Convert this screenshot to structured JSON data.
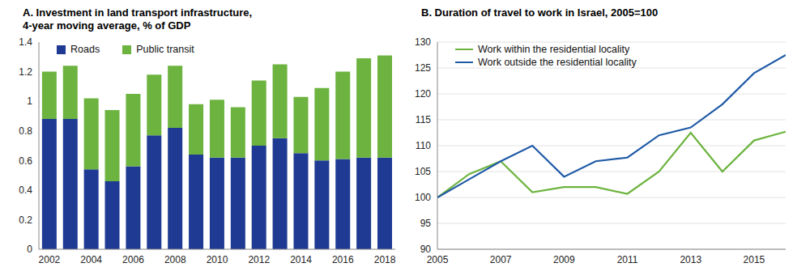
{
  "chart_data": [
    {
      "type": "bar",
      "title": "A. Investment in land transport infrastructure,\n4-year moving average, % of GDP",
      "categories": [
        "2002",
        null,
        "2004",
        null,
        "2006",
        null,
        "2008",
        null,
        "2010",
        null,
        "2012",
        null,
        "2014",
        null,
        "2016",
        null,
        "2018"
      ],
      "series": [
        {
          "name": "Roads",
          "color": "#1f3a93",
          "values": [
            0.88,
            0.88,
            0.54,
            0.46,
            0.56,
            0.77,
            0.82,
            0.64,
            0.62,
            0.62,
            0.7,
            0.75,
            0.65,
            0.6,
            0.61,
            0.62,
            0.62
          ]
        },
        {
          "name": "Public transit",
          "color": "#6db33f",
          "values": [
            0.32,
            0.36,
            0.48,
            0.48,
            0.49,
            0.41,
            0.42,
            0.34,
            0.39,
            0.34,
            0.44,
            0.5,
            0.38,
            0.49,
            0.59,
            0.67,
            0.69
          ]
        }
      ],
      "stacked": true,
      "ylim": [
        0,
        1.4
      ],
      "yticks": [
        0,
        0.2,
        0.4,
        0.6,
        0.8,
        1,
        1.2,
        1.4
      ],
      "legend": "upper left",
      "grid": false
    },
    {
      "type": "line",
      "title": "B. Duration of travel to work in Israel, 2005=100",
      "x": [
        2005,
        2006,
        2007,
        2008,
        2009,
        2010,
        2011,
        2012,
        2013,
        2014,
        2015,
        2016
      ],
      "series": [
        {
          "name": "Work within the residential locality",
          "color": "#6db33f",
          "values": [
            100,
            104.5,
            107,
            101,
            102,
            102,
            100.7,
            105,
            112.5,
            105,
            111,
            112.7
          ]
        },
        {
          "name": "Work outside the residential locality",
          "color": "#1f5aa6",
          "values": [
            100,
            103.5,
            107,
            110,
            104,
            107,
            107.7,
            112,
            113.5,
            118,
            124,
            127.5
          ]
        }
      ],
      "xlim": [
        2005,
        2016
      ],
      "xticks": [
        2005,
        2007,
        2009,
        2011,
        2013,
        2015
      ],
      "ylim": [
        90,
        130
      ],
      "yticks": [
        90,
        95,
        100,
        105,
        110,
        115,
        120,
        125,
        130
      ],
      "legend": "upper left",
      "grid": true
    }
  ]
}
